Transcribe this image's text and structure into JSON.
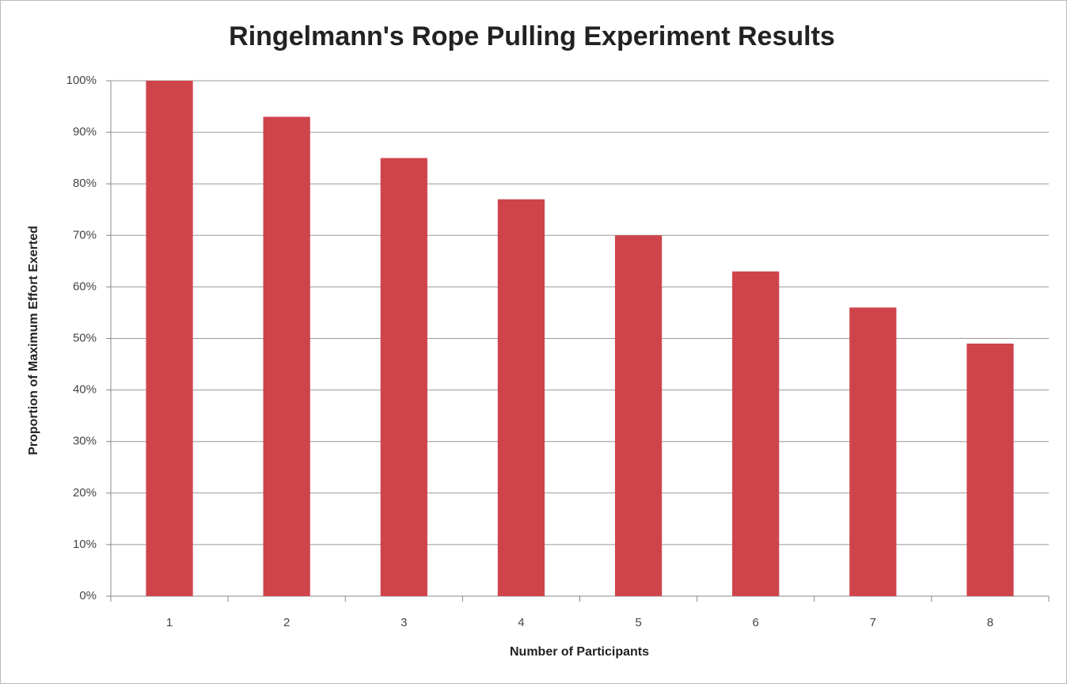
{
  "chart_data": {
    "type": "bar",
    "title": "Ringelmann's Rope Pulling Experiment Results",
    "x_label": "Number of Participants",
    "y_label": "Proportion of Maximum Effort Exerted",
    "categories": [
      "1",
      "2",
      "3",
      "4",
      "5",
      "6",
      "7",
      "8"
    ],
    "values": [
      100,
      93,
      85,
      77,
      70,
      63,
      56,
      49
    ],
    "color": "#cf444b",
    "ylim": [
      0,
      100
    ],
    "yticks": [
      {
        "value": 0,
        "label": "0%"
      },
      {
        "value": 10,
        "label": "10%"
      },
      {
        "value": 20,
        "label": "20%"
      },
      {
        "value": 30,
        "label": "30%"
      },
      {
        "value": 40,
        "label": "40%"
      },
      {
        "value": 50,
        "label": "50%"
      },
      {
        "value": 60,
        "label": "60%"
      },
      {
        "value": 70,
        "label": "70%"
      },
      {
        "value": 80,
        "label": "80%"
      },
      {
        "value": 90,
        "label": "90%"
      },
      {
        "value": 100,
        "label": "100%"
      }
    ],
    "grid": true
  }
}
